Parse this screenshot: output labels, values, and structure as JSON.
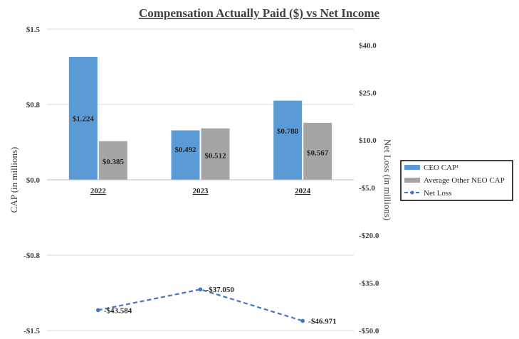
{
  "chart_data": {
    "type": "bar",
    "title": "Compensation Actually Paid ($) vs Net Income",
    "categories": [
      "2022",
      "2023",
      "2024"
    ],
    "ylabel": "CAP (in millions)",
    "y2label": "Net Loss (in millions)",
    "ylim": [
      -1.5,
      1.5
    ],
    "y2lim": [
      -50,
      45
    ],
    "y_ticks": [
      {
        "value": 1.5,
        "label": "$1.5"
      },
      {
        "value": 0.75,
        "label": "$0.8"
      },
      {
        "value": 0,
        "label": "$0.0"
      },
      {
        "value": -0.75,
        "label": "-$0.8"
      },
      {
        "value": -1.5,
        "label": "-$1.5"
      }
    ],
    "y2_ticks": [
      {
        "value": 40,
        "label": "$40.0"
      },
      {
        "value": 25,
        "label": "$25.0"
      },
      {
        "value": 10,
        "label": "$10.0"
      },
      {
        "value": -5,
        "label": "-$5.0"
      },
      {
        "value": -20,
        "label": "-$20.0"
      },
      {
        "value": -35,
        "label": "-$35.0"
      },
      {
        "value": -50,
        "label": "-$50.0"
      }
    ],
    "series": [
      {
        "name": "CEO CAP¹",
        "type": "bar",
        "axis": "left",
        "color": "#5b9bd5",
        "values": [
          1.224,
          0.492,
          0.788
        ],
        "labels": [
          "$1.224",
          "$0.492",
          "$0.788"
        ]
      },
      {
        "name": "Average Other NEO CAP",
        "type": "bar",
        "axis": "left",
        "color": "#a5a5a5",
        "values": [
          0.385,
          0.512,
          0.567
        ],
        "labels": [
          "$0.385",
          "$0.512",
          "$0.567"
        ]
      },
      {
        "name": "Net Loss",
        "type": "line",
        "axis": "right",
        "color": "#4472c4",
        "values": [
          -43.584,
          -37.05,
          -46.971
        ],
        "labels": [
          "-$43.584",
          "-$37.050",
          "-$46.971"
        ]
      }
    ],
    "legend_position": "right",
    "grid": "horizontal"
  }
}
